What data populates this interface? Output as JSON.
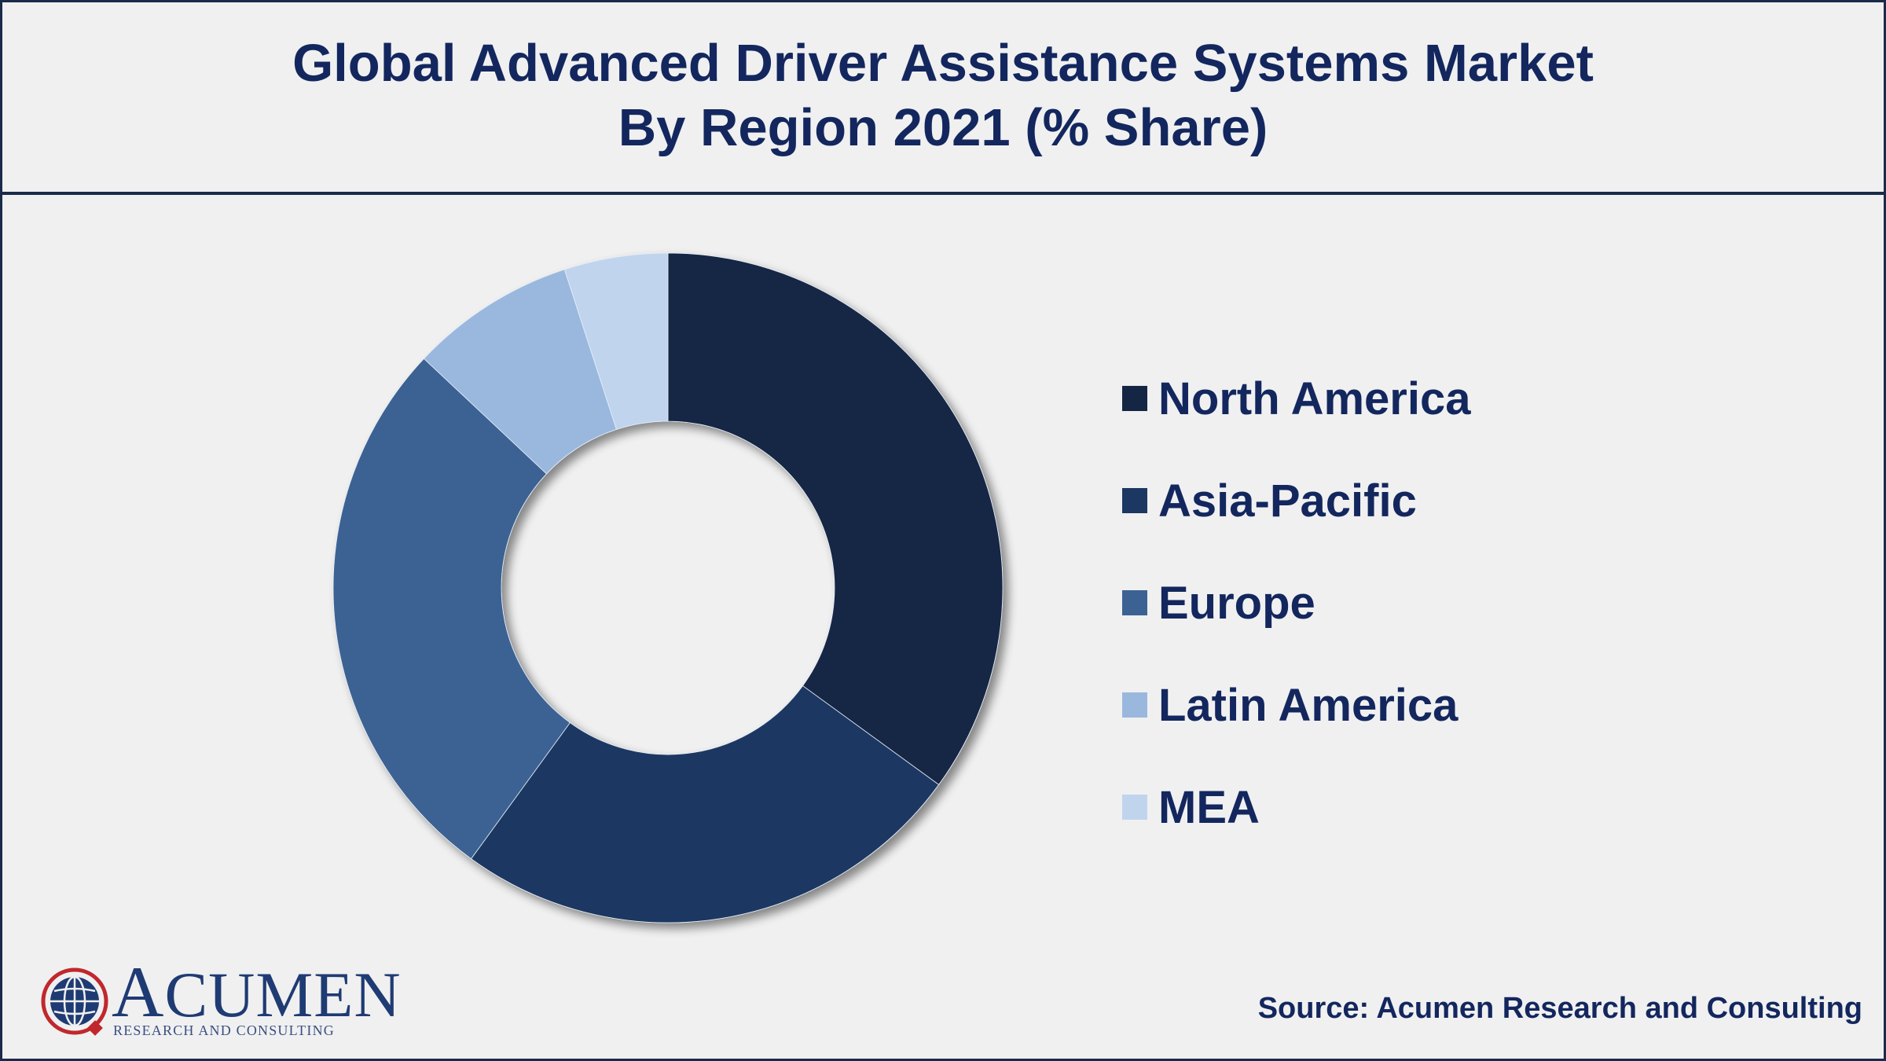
{
  "chart_data": {
    "type": "pie",
    "variant": "donut",
    "title_lines": [
      "Global Advanced Driver Assistance Systems Market",
      "By Region 2021 (% Share)"
    ],
    "categories": [
      "North America",
      "Asia-Pacific",
      "Europe",
      "Latin America",
      "MEA"
    ],
    "values": [
      35,
      25,
      27,
      8,
      5
    ],
    "colors": [
      "#142644",
      "#1c3862",
      "#3b6293",
      "#9ab8de",
      "#c0d4ee"
    ],
    "start_angle_deg": 0,
    "direction": "clockwise",
    "legend_position": "right"
  },
  "source_text": "Source: Acumen Research and Consulting",
  "logo": {
    "wordmark_first": "A",
    "wordmark_rest": "CUMEN",
    "subtitle": "RESEARCH AND CONSULTING"
  },
  "colors": {
    "background": "#f0f0f1",
    "text": "#13275e",
    "border": "#1b2a4a"
  }
}
